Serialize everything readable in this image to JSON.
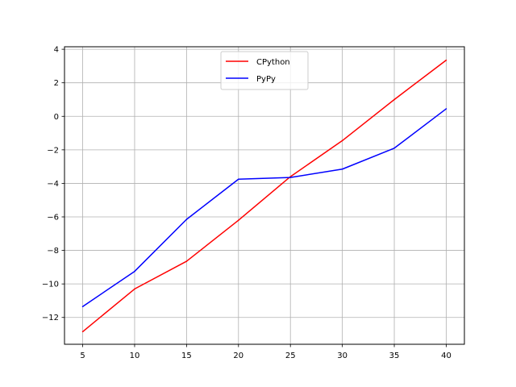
{
  "chart_data": {
    "type": "line",
    "title": "",
    "xlabel": "",
    "ylabel": "",
    "x": [
      5,
      10,
      15,
      20,
      25,
      30,
      35,
      40
    ],
    "xlim": [
      3.25,
      41.75
    ],
    "ylim": [
      -13.6,
      4.15
    ],
    "xticks": [
      5,
      10,
      15,
      20,
      25,
      30,
      35,
      40
    ],
    "yticks": [
      -12,
      -10,
      -8,
      -6,
      -4,
      -2,
      0,
      2,
      4
    ],
    "grid": true,
    "legend_position": "upper center",
    "series": [
      {
        "name": "CPython",
        "color": "#ff0000",
        "values": [
          -12.85,
          -10.3,
          -8.65,
          -6.2,
          -3.6,
          -1.45,
          1.0,
          3.35
        ]
      },
      {
        "name": "PyPy",
        "color": "#0000ff",
        "values": [
          -11.35,
          -9.25,
          -6.15,
          -3.75,
          -3.65,
          -3.15,
          -1.9,
          0.45
        ]
      }
    ]
  }
}
